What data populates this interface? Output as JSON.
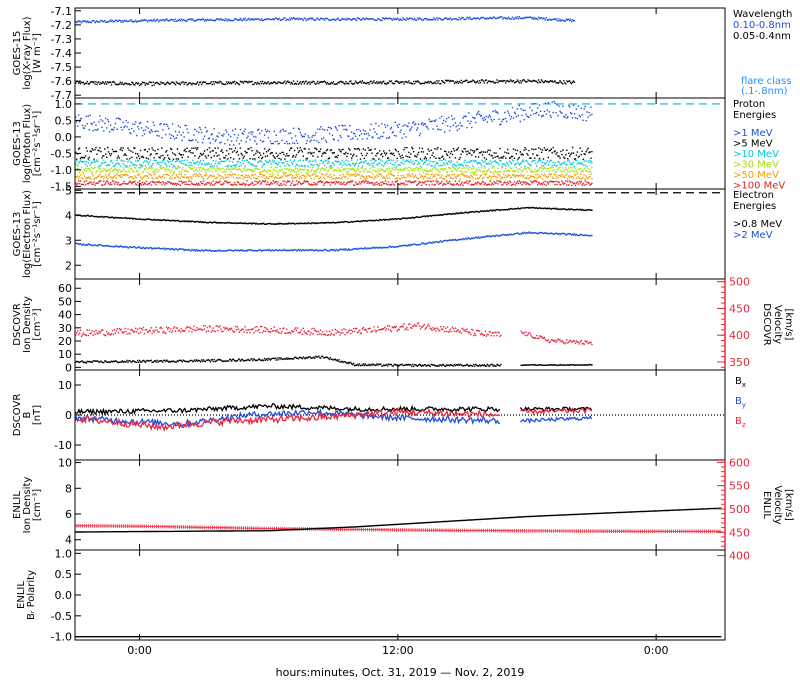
{
  "chart_data": {
    "type": "line",
    "xlabel": "hours:minutes, Oct. 31, 2019 — Nov. 2, 2019",
    "xticks": [
      {
        "h": 0,
        "label": "0:00"
      },
      {
        "h": 12,
        "label": "12:00"
      },
      {
        "h": 24,
        "label": "0:00"
      }
    ],
    "x_range_hours": [
      -3,
      27.2
    ],
    "panels": [
      {
        "id": "goes15-xray",
        "ylabel": [
          "GOES-15",
          "log(X-ray Flux)",
          "[W m⁻²]"
        ],
        "ylim": [
          -7.72,
          -7.08
        ],
        "yticks": [
          -7.1,
          -7.2,
          -7.3,
          -7.4,
          -7.5,
          -7.6,
          -7.7
        ],
        "yticklabels": [
          "-7.1",
          "-7.2",
          "-7.3",
          "-7.4",
          "-7.5",
          "-7.6",
          "-7.7"
        ],
        "legend_title": [
          "Wavelength"
        ],
        "legend_entries": [
          {
            "label": "0.10-0.8nm",
            "color": "#1e4fd8"
          },
          {
            "label": "0.05-0.4nm",
            "color": "#000000"
          }
        ],
        "footer_labels": [
          {
            "label": "flare class",
            "color": "#1e90ff"
          },
          {
            "label": "(.1-.8nm)",
            "color": "#1e90ff"
          }
        ],
        "series": [
          {
            "label": "0.10-0.8nm",
            "color": "#1e4fd8",
            "x": [
              -3,
              0,
              6,
              12,
              18,
              20.2
            ],
            "y": [
              -7.18,
              -7.17,
              -7.16,
              -7.16,
              -7.15,
              -7.17
            ],
            "noise": 0.009,
            "style": "dots"
          },
          {
            "label": "0.05-0.4nm",
            "color": "#000000",
            "x": [
              -3,
              0,
              6,
              12,
              18,
              20.2
            ],
            "y": [
              -7.61,
              -7.62,
              -7.61,
              -7.61,
              -7.6,
              -7.61
            ],
            "noise": 0.012,
            "style": "dots"
          }
        ],
        "hlines": []
      },
      {
        "id": "goes13-proton",
        "ylabel": [
          "GOES-13",
          "log(Proton Flux)",
          "[cm⁻²s⁻¹sr⁻¹]"
        ],
        "ylim": [
          -1.58,
          1.18
        ],
        "yticks": [
          1.0,
          0.5,
          0.0,
          -0.5,
          -1.0,
          -1.5
        ],
        "yticklabels": [
          "1.0",
          "0.5",
          "0.0",
          "-0.5",
          "-1.0",
          "-1.5"
        ],
        "legend_title": [
          "Proton",
          "Energies"
        ],
        "legend_entries": [
          {
            "label": ">1 MeV",
            "color": "#1e4fd8"
          },
          {
            "label": ">5 MeV",
            "color": "#000000"
          },
          {
            "label": ">10 MeV",
            "color": "#00c8d8"
          },
          {
            "label": ">30 MeV",
            "color": "#a8e000"
          },
          {
            "label": ">50 MeV",
            "color": "#f0a000"
          },
          {
            "label": ">100 MeV",
            "color": "#e02020"
          }
        ],
        "series": [
          {
            "label": ">1 MeV",
            "color": "#1e4fd8",
            "x": [
              -3,
              0,
              4,
              8,
              12,
              16,
              19,
              21
            ],
            "y": [
              0.5,
              0.25,
              0.0,
              0.05,
              0.2,
              0.55,
              0.85,
              0.7
            ],
            "noise": 0.25,
            "style": "dots"
          },
          {
            "label": ">5 MeV",
            "color": "#000000",
            "x": [
              -3,
              21
            ],
            "y": [
              -0.5,
              -0.5
            ],
            "noise": 0.18,
            "style": "dots"
          },
          {
            "label": ">10 MeV",
            "color": "#00c8d8",
            "x": [
              -3,
              21
            ],
            "y": [
              -0.8,
              -0.8
            ],
            "noise": 0.1,
            "style": "dots"
          },
          {
            "label": ">30 MeV",
            "color": "#a8e000",
            "x": [
              -3,
              21
            ],
            "y": [
              -1.0,
              -1.0
            ],
            "noise": 0.08,
            "style": "dots"
          },
          {
            "label": ">50 MeV",
            "color": "#f0a000",
            "x": [
              -3,
              21
            ],
            "y": [
              -1.2,
              -1.2
            ],
            "noise": 0.08,
            "style": "dots"
          },
          {
            "label": ">100 MeV",
            "color": "#e02020",
            "x": [
              -3,
              21
            ],
            "y": [
              -1.4,
              -1.4
            ],
            "noise": 0.07,
            "style": "dots"
          }
        ],
        "hlines": [
          {
            "y": 1.0,
            "color": "#00b8e8",
            "dash": "8,5"
          }
        ]
      },
      {
        "id": "goes13-electron",
        "ylabel": [
          "GOES-13",
          "log(Electron Flux)",
          "[cm⁻²s⁻¹sr⁻¹]"
        ],
        "ylim": [
          1.45,
          5.05
        ],
        "yticks": [
          5,
          4,
          3,
          2
        ],
        "yticklabels": [
          "5",
          "4",
          "3",
          "2"
        ],
        "legend_title": [
          "Electron",
          "Energies"
        ],
        "legend_entries": [
          {
            "label": ">0.8 MeV",
            "color": "#000000"
          },
          {
            "label": ">2 MeV",
            "color": "#1e4fd8"
          }
        ],
        "series": [
          {
            "label": ">0.8 MeV",
            "color": "#000000",
            "x": [
              -3,
              0,
              3,
              6,
              9,
              12,
              15,
              18,
              21
            ],
            "y": [
              4.0,
              3.85,
              3.72,
              3.65,
              3.7,
              3.85,
              4.1,
              4.3,
              4.2
            ],
            "noise": 0.02,
            "style": "dots"
          },
          {
            "label": ">2 MeV",
            "color": "#1e4fd8",
            "x": [
              -3,
              0,
              3,
              6,
              9,
              12,
              15,
              18,
              21
            ],
            "y": [
              2.85,
              2.7,
              2.58,
              2.6,
              2.6,
              2.75,
              3.05,
              3.3,
              3.2
            ],
            "noise": 0.03,
            "style": "dots"
          }
        ],
        "hlines": [
          {
            "y": 4.9,
            "color": "#000000",
            "dash": "8,5"
          }
        ]
      },
      {
        "id": "dscovr-density-velocity",
        "ylabel": [
          "DSCOVR",
          "Ion Density",
          "[cm⁻³]"
        ],
        "ylim": [
          -2,
          67
        ],
        "yticks": [
          60,
          50,
          40,
          30,
          20,
          10,
          0
        ],
        "yticklabels": [
          "60",
          "50",
          "40",
          "30",
          "20",
          "10",
          "0"
        ],
        "ylabel_right": [
          "DSCOVR",
          "Velocity",
          "[km/s]"
        ],
        "ylim_right": [
          335,
          505
        ],
        "yticks_right": [
          500,
          450,
          400,
          350
        ],
        "yticklabels_right": [
          "500",
          "450",
          "400",
          "350"
        ],
        "series": [
          {
            "label": "Velocity",
            "axis": "right",
            "color": "#e8283c",
            "x": [
              -3,
              0,
              3,
              6,
              9,
              11,
              13,
              16,
              16.8
            ],
            "y": [
              403,
              408,
              412,
              410,
              405,
              410,
              418,
              402,
              400
            ],
            "noise": 6,
            "style": "dots"
          },
          {
            "label": "Velocity",
            "axis": "right",
            "color": "#e8283c",
            "x": [
              17.7,
              19,
              21
            ],
            "y": [
              405,
              390,
              385
            ],
            "noise": 4,
            "style": "dots"
          },
          {
            "label": "Density",
            "color": "#000000",
            "x": [
              -3,
              3,
              6,
              8.5,
              10,
              12,
              16,
              16.8
            ],
            "y": [
              4,
              5,
              6,
              8,
              2,
              1.5,
              1.5,
              1.5
            ],
            "noise": 0.8,
            "style": "dots"
          },
          {
            "label": "Density",
            "color": "#000000",
            "x": [
              17.7,
              21
            ],
            "y": [
              1.8,
              1.8
            ],
            "noise": 0.3,
            "style": "dots"
          }
        ],
        "hlines": []
      },
      {
        "id": "dscovr-bfield",
        "ylabel": [
          "DSCOVR",
          "B",
          "[nT]"
        ],
        "ylim": [
          -15,
          15
        ],
        "yticks": [
          10,
          0,
          -10
        ],
        "yticklabels": [
          "10",
          "0",
          "-10"
        ],
        "legend_entries": [
          {
            "label": "Bx",
            "base": "B",
            "sub": "x",
            "color": "#000000"
          },
          {
            "label": "By",
            "base": "B",
            "sub": "y",
            "color": "#1e4fd8"
          },
          {
            "label": "Bz",
            "base": "B",
            "sub": "z",
            "color": "#e8283c"
          }
        ],
        "series": [
          {
            "label": "Bx",
            "color": "#000000",
            "x": [
              -3,
              2,
              6,
              10,
              14,
              16.8
            ],
            "y": [
              1,
              1.5,
              3,
              2,
              2,
              2
            ],
            "noise": 0.8,
            "style": "line"
          },
          {
            "label": "Bx",
            "color": "#000000",
            "x": [
              17.7,
              21
            ],
            "y": [
              2,
              2
            ],
            "noise": 0.6,
            "style": "line"
          },
          {
            "label": "By",
            "color": "#1e4fd8",
            "x": [
              -3,
              2,
              5,
              8,
              12,
              16.8
            ],
            "y": [
              -1,
              -3,
              0,
              1,
              -1,
              -2
            ],
            "noise": 1.0,
            "style": "line"
          },
          {
            "label": "By",
            "color": "#1e4fd8",
            "x": [
              17.7,
              21
            ],
            "y": [
              -2,
              -1
            ],
            "noise": 0.6,
            "style": "line"
          },
          {
            "label": "Bz",
            "color": "#e8283c",
            "x": [
              -3,
              1,
              4,
              8,
              12,
              16.8
            ],
            "y": [
              -1,
              -4,
              -2,
              -1,
              1,
              0
            ],
            "noise": 1.2,
            "style": "line"
          },
          {
            "label": "Bz",
            "color": "#e8283c",
            "x": [
              17.7,
              21
            ],
            "y": [
              1,
              1.5
            ],
            "noise": 0.8,
            "style": "line"
          }
        ],
        "hlines": [
          {
            "y": 0,
            "color": "#000000",
            "dash": "1,2"
          }
        ]
      },
      {
        "id": "enlil-density-velocity",
        "ylabel": [
          "ENLIL",
          "Ion Density",
          "[cm⁻³]"
        ],
        "ylim": [
          3.2,
          10.2
        ],
        "yticks": [
          10,
          8,
          6,
          4
        ],
        "yticklabels": [
          "10",
          "8",
          "6",
          "4"
        ],
        "ylabel_right": [
          "ENLIL",
          "Velocity",
          "[km/s]"
        ],
        "ylim_right": [
          412,
          605
        ],
        "yticks_right": [
          600,
          550,
          500,
          450,
          400
        ],
        "yticklabels_right": [
          "600",
          "550",
          "500",
          "450",
          "400"
        ],
        "series": [
          {
            "label": "Velocity",
            "axis": "right",
            "color": "#e8283c",
            "x": [
              -3,
              0,
              6,
              12,
              18,
              24,
              27
            ],
            "y": [
              464,
              463,
              458,
              455,
              453,
              452,
              452
            ],
            "noise": 0,
            "style": "cross"
          },
          {
            "label": "Density",
            "color": "#000000",
            "x": [
              -3,
              6,
              10,
              14,
              18,
              22,
              27
            ],
            "y": [
              4.6,
              4.7,
              5.0,
              5.4,
              5.8,
              6.1,
              6.45
            ],
            "noise": 0,
            "style": "dots"
          }
        ],
        "hlines": []
      },
      {
        "id": "enlil-polarity",
        "ylabel": [
          "ENLIL",
          "Bᵣ Polarity"
        ],
        "ylim": [
          -1.08,
          1.08
        ],
        "yticks": [
          1.0,
          0.5,
          0.0,
          -0.5,
          -1.0
        ],
        "yticklabels": [
          "1.0",
          "0.5",
          "0.0",
          "-0.5",
          "-1.0"
        ],
        "series": [
          {
            "label": "Polarity",
            "color": "#000000",
            "x": [
              -3,
              27
            ],
            "y": [
              -1.0,
              -1.0
            ],
            "noise": 0,
            "style": "dots"
          }
        ],
        "hlines": []
      }
    ]
  }
}
